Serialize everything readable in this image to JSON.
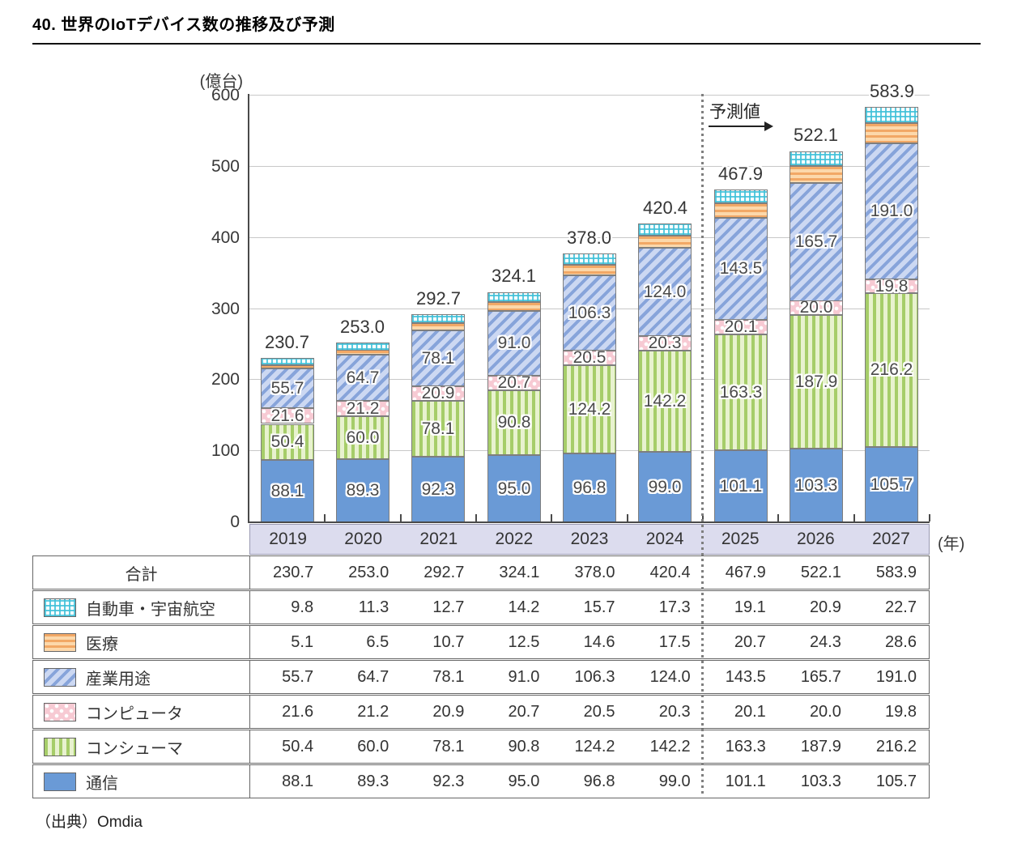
{
  "title": "40. 世界のIoTデバイス数の推移及び予測",
  "source": "（出典）Omdia",
  "chart_data": {
    "type": "bar",
    "stacked": true,
    "title": "世界のIoTデバイス数の推移及び予測",
    "y_unit_label": "(億台)",
    "x_unit_label": "(年)",
    "ylim": [
      0,
      600
    ],
    "yticks": [
      0,
      100,
      200,
      300,
      400,
      500,
      600
    ],
    "grid": true,
    "legend_position": "table-left-column",
    "categories": [
      "2019",
      "2020",
      "2021",
      "2022",
      "2023",
      "2024",
      "2025",
      "2026",
      "2027"
    ],
    "totals": [
      230.7,
      253.0,
      292.7,
      324.1,
      378.0,
      420.4,
      467.9,
      522.1,
      583.9
    ],
    "forecast": {
      "label": "予測値",
      "starts_at": "2025"
    },
    "series": [
      {
        "name": "通信",
        "pattern": "comm",
        "bar_labels": true,
        "values": [
          88.1,
          89.3,
          92.3,
          95.0,
          96.8,
          99.0,
          101.1,
          103.3,
          105.7
        ]
      },
      {
        "name": "コンシューマ",
        "pattern": "cons",
        "bar_labels": true,
        "values": [
          50.4,
          60.0,
          78.1,
          90.8,
          124.2,
          142.2,
          163.3,
          187.9,
          216.2
        ]
      },
      {
        "name": "コンピュータ",
        "pattern": "comp",
        "bar_labels": true,
        "values": [
          21.6,
          21.2,
          20.9,
          20.7,
          20.5,
          20.3,
          20.1,
          20.0,
          19.8
        ]
      },
      {
        "name": "産業用途",
        "pattern": "ind",
        "bar_labels": true,
        "values": [
          55.7,
          64.7,
          78.1,
          91.0,
          106.3,
          124.0,
          143.5,
          165.7,
          191.0
        ]
      },
      {
        "name": "医療",
        "pattern": "med",
        "bar_labels": false,
        "values": [
          5.1,
          6.5,
          10.7,
          12.5,
          14.6,
          17.5,
          20.7,
          24.3,
          28.6
        ]
      },
      {
        "name": "自動車・宇宙航空",
        "pattern": "auto",
        "bar_labels": false,
        "values": [
          9.8,
          11.3,
          12.7,
          14.2,
          15.7,
          17.3,
          19.1,
          20.9,
          22.7
        ]
      }
    ],
    "table": {
      "rows": [
        {
          "label": "合計",
          "swatch": null,
          "values": [
            230.7,
            253.0,
            292.7,
            324.1,
            378.0,
            420.4,
            467.9,
            522.1,
            583.9
          ]
        },
        {
          "label": "自動車・宇宙航空",
          "swatch": "auto",
          "values": [
            9.8,
            11.3,
            12.7,
            14.2,
            15.7,
            17.3,
            19.1,
            20.9,
            22.7
          ]
        },
        {
          "label": "医療",
          "swatch": "med",
          "values": [
            5.1,
            6.5,
            10.7,
            12.5,
            14.6,
            17.5,
            20.7,
            24.3,
            28.6
          ]
        },
        {
          "label": "産業用途",
          "swatch": "ind",
          "values": [
            55.7,
            64.7,
            78.1,
            91.0,
            106.3,
            124.0,
            143.5,
            165.7,
            191.0
          ]
        },
        {
          "label": "コンピュータ",
          "swatch": "comp",
          "values": [
            21.6,
            21.2,
            20.9,
            20.7,
            20.5,
            20.3,
            20.1,
            20.0,
            19.8
          ]
        },
        {
          "label": "コンシューマ",
          "swatch": "cons",
          "values": [
            50.4,
            60.0,
            78.1,
            90.8,
            124.2,
            142.2,
            163.3,
            187.9,
            216.2
          ]
        },
        {
          "label": "通信",
          "swatch": "comm",
          "values": [
            88.1,
            89.3,
            92.3,
            95.0,
            96.8,
            99.0,
            101.1,
            103.3,
            105.7
          ]
        }
      ]
    },
    "colors": {
      "communication_blue": "#6a9ad6",
      "consumer_green_stripe": "#a6cd69",
      "consumer_green_bg": "#e8f2cf",
      "computer_pink_bg": "#f7cad3",
      "industrial_blue_stripe": "#87a4da",
      "industrial_blue_bg": "#ccd8f2",
      "medical_orange_stripe": "#f2a866",
      "medical_orange_bg": "#fcd8ab",
      "automotive_cyan": "#3fc0d8",
      "year_band_bg": "#dcdcee",
      "gridline": "#c8c8c8",
      "axis": "#4a4a4a",
      "text": "#383838"
    }
  }
}
